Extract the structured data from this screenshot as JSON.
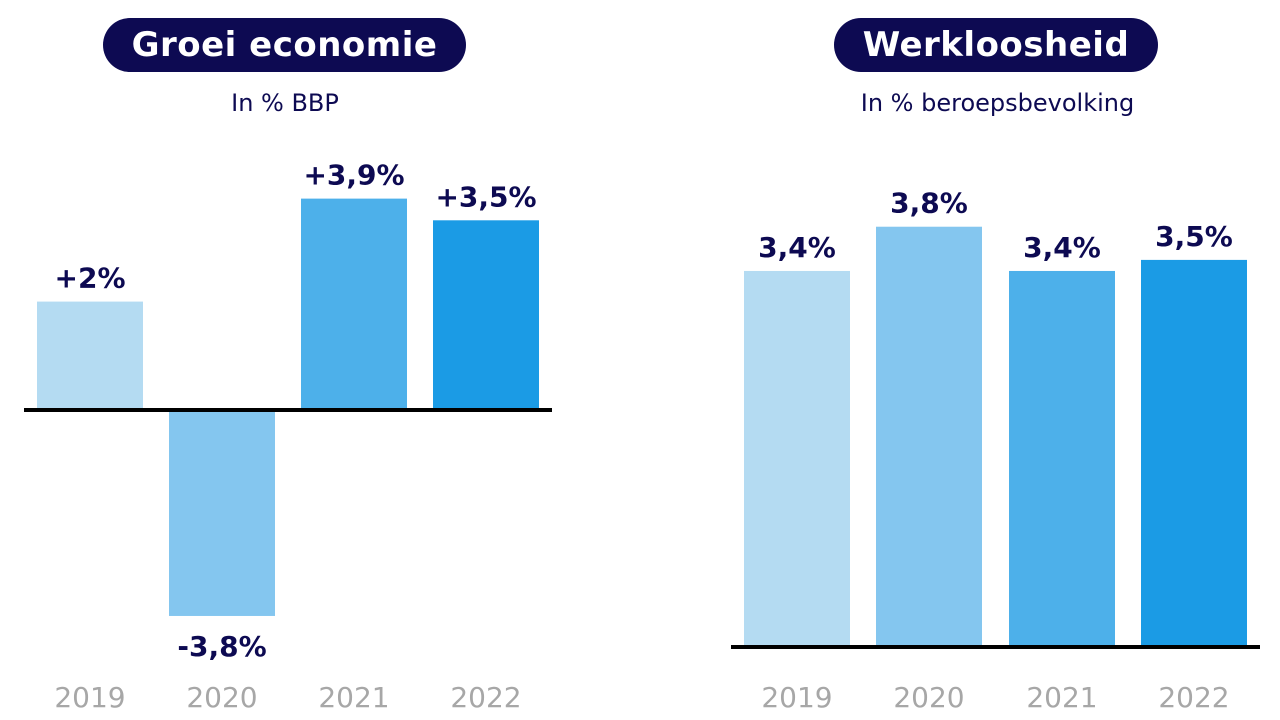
{
  "charts": [
    {
      "title": "Groei economie",
      "subtitle": "In % BBP"
    },
    {
      "title": "Werkloosheid",
      "subtitle": "In % beroepsbevolking"
    }
  ],
  "colors": {
    "navy": "#0d0a52",
    "tick_grey": "#a7a7a7",
    "bars": [
      "#b4dbf2",
      "#84c6ef",
      "#4db0ea",
      "#1b9be5"
    ]
  },
  "chart_data": [
    {
      "type": "bar",
      "title": "Groei economie",
      "subtitle": "In % BBP",
      "categories": [
        "2019",
        "2020",
        "2021",
        "2022"
      ],
      "values": [
        2.0,
        -3.8,
        3.9,
        3.5
      ],
      "data_labels": [
        "+2%",
        "-3,8%",
        "+3,9%",
        "+3,5%"
      ],
      "xlabel": "",
      "ylabel": "",
      "ylim": [
        -3.8,
        3.9
      ],
      "grid": false,
      "legend": "none"
    },
    {
      "type": "bar",
      "title": "Werkloosheid",
      "subtitle": "In % beroepsbevolking",
      "categories": [
        "2019",
        "2020",
        "2021",
        "2022"
      ],
      "values": [
        3.4,
        3.8,
        3.4,
        3.5
      ],
      "data_labels": [
        "3,4%",
        "3,8%",
        "3,4%",
        "3,5%"
      ],
      "xlabel": "",
      "ylabel": "",
      "ylim": [
        0,
        3.8
      ],
      "grid": false,
      "legend": "none"
    }
  ]
}
